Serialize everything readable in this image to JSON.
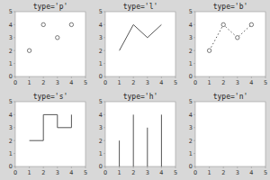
{
  "chart_data": [
    {
      "type": "scatter",
      "title": "type='p'",
      "x": [
        1,
        2,
        3,
        4
      ],
      "values": [
        2,
        4,
        3,
        4
      ],
      "color": "#555555",
      "marker": "circle",
      "xlim": [
        0,
        5
      ],
      "ylim": [
        0,
        5
      ],
      "xticks": [
        0,
        1,
        2,
        3,
        4,
        5
      ],
      "yticks": [
        0,
        1,
        2,
        3,
        4,
        5
      ]
    },
    {
      "type": "line",
      "title": "type='l'",
      "x": [
        1,
        2,
        3,
        4
      ],
      "values": [
        2,
        4,
        3,
        4
      ],
      "color": "#555555",
      "xlim": [
        0,
        5
      ],
      "ylim": [
        0,
        5
      ],
      "xticks": [
        0,
        1,
        2,
        3,
        4,
        5
      ],
      "yticks": [
        0,
        1,
        2,
        3,
        4,
        5
      ]
    },
    {
      "type": "line",
      "title": "type='b'",
      "x": [
        1,
        2,
        3,
        4
      ],
      "values": [
        2,
        4,
        3,
        4
      ],
      "color": "#555555",
      "marker": "circle",
      "line_style": "dotted",
      "xlim": [
        0,
        5
      ],
      "ylim": [
        0,
        5
      ],
      "xticks": [
        0,
        1,
        2,
        3,
        4,
        5
      ],
      "yticks": [
        0,
        1,
        2,
        3,
        4,
        5
      ]
    },
    {
      "type": "step",
      "title": "type='s'",
      "x": [
        1,
        2,
        3,
        4
      ],
      "values": [
        2,
        4,
        3,
        4
      ],
      "color": "#555555",
      "xlim": [
        0,
        5
      ],
      "ylim": [
        0,
        5
      ],
      "xticks": [
        0,
        1,
        2,
        3,
        4,
        5
      ],
      "yticks": [
        0,
        1,
        2,
        3,
        4,
        5
      ]
    },
    {
      "type": "stem",
      "title": "type='h'",
      "x": [
        1,
        2,
        3,
        4
      ],
      "values": [
        2,
        4,
        3,
        4
      ],
      "color": "#555555",
      "xlim": [
        0,
        5
      ],
      "ylim": [
        0,
        5
      ],
      "xticks": [
        0,
        1,
        2,
        3,
        4,
        5
      ],
      "yticks": [
        0,
        1,
        2,
        3,
        4,
        5
      ]
    },
    {
      "type": "empty",
      "title": "type='n'",
      "xlim": [
        0,
        5
      ],
      "ylim": [
        0,
        5
      ],
      "xticks": [
        0,
        1,
        2,
        3,
        4,
        5
      ],
      "yticks": [
        0,
        1,
        2,
        3,
        4,
        5
      ]
    }
  ]
}
